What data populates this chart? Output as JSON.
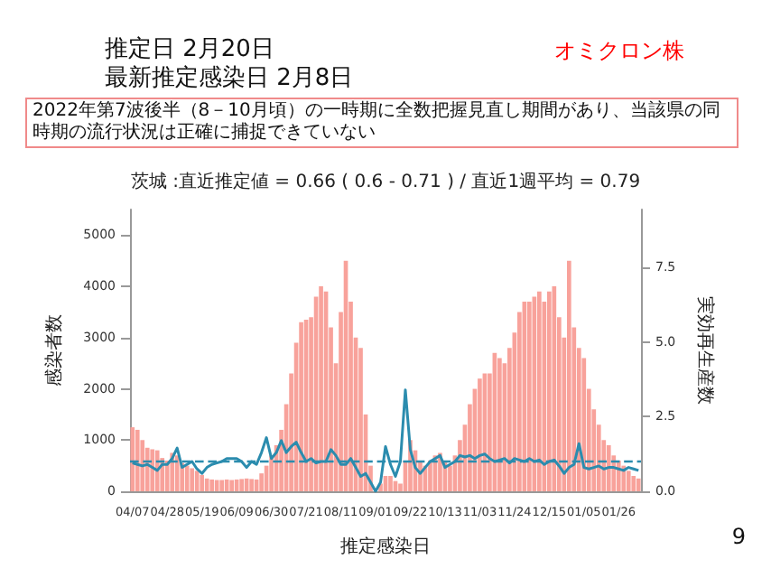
{
  "chart_data": {
    "type": "bar",
    "title": "推定日  2月20日",
    "subtitle": "最新推定感染日  2月8日",
    "annotations": [
      "オミクロン株",
      "2022年第7波後半（8－10月頃）の一時期に全数把握見直し期間があり、当該県の同時期の流行状況は正確に捕捉できていない",
      "茨城 :直近推定値 = 0.66 ( 0.6 - 0.71 ) / 直近1週平均 = 0.79",
      "9"
    ],
    "xlabel": "推定感染日",
    "ylabel": "感染者数",
    "y2label": "実効再生産数",
    "categories": [
      "04/07",
      null,
      null,
      null,
      null,
      null,
      null,
      "04/28",
      null,
      null,
      null,
      null,
      null,
      null,
      "05/19",
      null,
      null,
      null,
      null,
      null,
      null,
      "06/09",
      null,
      null,
      null,
      null,
      null,
      null,
      "06/30",
      null,
      null,
      null,
      null,
      null,
      null,
      "07/21",
      null,
      null,
      null,
      null,
      null,
      null,
      "08/11",
      null,
      null,
      null,
      null,
      null,
      null,
      "09/01",
      null,
      null,
      null,
      null,
      null,
      null,
      "09/22",
      null,
      null,
      null,
      null,
      null,
      null,
      "10/13",
      null,
      null,
      null,
      null,
      null,
      null,
      "11/03",
      null,
      null,
      null,
      null,
      null,
      null,
      "11/24",
      null,
      null,
      null,
      null,
      null,
      null,
      "12/15",
      null,
      null,
      null,
      null,
      null,
      null,
      "01/05",
      null,
      null,
      null,
      null,
      null,
      null,
      "01/26",
      null,
      null,
      null,
      null
    ],
    "series": [
      {
        "color": "#f8a29b",
        "values": [
          1250,
          1200,
          1000,
          850,
          820,
          800,
          650,
          600,
          750,
          700,
          550,
          500,
          450,
          400,
          320,
          250,
          230,
          220,
          220,
          230,
          220,
          230,
          240,
          250,
          240,
          230,
          350,
          500,
          700,
          900,
          1200,
          1700,
          2300,
          2900,
          3300,
          3350,
          3400,
          3800,
          4000,
          3900,
          3200,
          2500,
          3500,
          4500,
          3700,
          3000,
          2800,
          1500,
          500,
          null,
          150,
          300,
          300,
          200,
          150,
          600,
          1000,
          800,
          600,
          500,
          600,
          700,
          750,
          600,
          500,
          700,
          1000,
          1300,
          1700,
          2000,
          2200,
          2300,
          2300,
          2700,
          2600,
          2500,
          2800,
          3100,
          3500,
          3700,
          3700,
          3800,
          3900,
          3700,
          3900,
          4000,
          3400,
          3000,
          4500,
          3200,
          2800,
          2600,
          2000,
          1600,
          1300,
          1000,
          900,
          700,
          600,
          500,
          400,
          300,
          250
        ]
      },
      {
        "type": "line",
        "axis": "y2",
        "color": "#2b8cae",
        "values": [
          0.95,
          0.9,
          0.85,
          0.9,
          0.8,
          0.7,
          0.9,
          0.9,
          1.1,
          1.45,
          0.8,
          0.9,
          1.0,
          0.75,
          0.6,
          0.8,
          0.9,
          0.95,
          1.0,
          1.1,
          1.1,
          1.1,
          1.0,
          0.8,
          1.0,
          0.9,
          1.3,
          1.8,
          1.1,
          1.3,
          1.7,
          1.3,
          1.5,
          1.65,
          1.3,
          1.0,
          1.1,
          0.95,
          1.0,
          1.0,
          1.4,
          1.2,
          0.9,
          0.9,
          1.1,
          0.8,
          0.5,
          0.6,
          0.3,
          0.0,
          0.3,
          1.5,
          0.9,
          0.5,
          1.0,
          3.4,
          1.4,
          0.8,
          0.6,
          0.8,
          1.0,
          1.1,
          1.2,
          0.8,
          0.9,
          1.0,
          1.2,
          1.15,
          1.2,
          1.1,
          1.2,
          1.25,
          1.1,
          1.0,
          1.05,
          1.1,
          0.95,
          1.1,
          1.05,
          1.0,
          1.1,
          1.0,
          1.05,
          0.9,
          1.0,
          1.05,
          0.85,
          0.6,
          0.8,
          0.9,
          1.6,
          0.8,
          0.75,
          0.8,
          0.85,
          0.75,
          0.8,
          0.8,
          0.75,
          0.7,
          0.8,
          0.75,
          0.7
        ]
      }
    ],
    "ylim": [
      0,
      5500
    ],
    "yticks": [
      0,
      1000,
      2000,
      3000,
      4000,
      5000
    ],
    "y2lim": [
      0,
      9.45
    ],
    "y2ticks": [
      {
        "value": 0,
        "label": "0.0"
      },
      {
        "value": 2.5,
        "label": "2.5"
      },
      {
        "value": 5,
        "label": "5.0"
      },
      {
        "value": 7.5,
        "label": "7.5"
      }
    ],
    "ref_lines": [
      {
        "axis": "y2",
        "value": 1,
        "color": "#2b8cae",
        "line_style": "dashed"
      }
    ],
    "marker": "none",
    "line_style": "solid"
  }
}
